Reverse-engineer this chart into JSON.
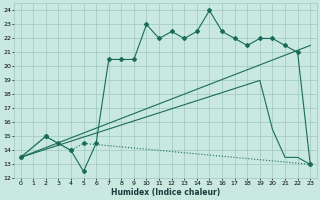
{
  "xlabel": "Humidex (Indice chaleur)",
  "bg_color": "#c8e8e0",
  "grid_color": "#a0c8c0",
  "line_color": "#1a6b5a",
  "xlim": [
    -0.5,
    23.5
  ],
  "ylim": [
    12,
    24.5
  ],
  "xticks": [
    0,
    1,
    2,
    3,
    4,
    5,
    6,
    7,
    8,
    9,
    10,
    11,
    12,
    13,
    14,
    15,
    16,
    17,
    18,
    19,
    20,
    21,
    22,
    23
  ],
  "yticks": [
    12,
    13,
    14,
    15,
    16,
    17,
    18,
    19,
    20,
    21,
    22,
    23,
    24
  ],
  "line1_x": [
    0,
    2,
    3,
    4,
    5,
    6,
    7,
    8,
    9,
    10,
    11,
    12,
    13,
    14,
    15,
    16,
    17,
    18,
    19,
    20,
    21,
    22,
    23
  ],
  "line1_y": [
    13.5,
    15,
    14.5,
    14,
    12.5,
    14.5,
    20.5,
    20.5,
    20.5,
    23,
    22,
    22.5,
    22,
    22.5,
    24,
    22.5,
    22,
    21.5,
    22,
    22,
    21.5,
    21,
    13
  ],
  "line2_x": [
    0,
    2,
    4,
    5,
    23
  ],
  "line2_y": [
    13.5,
    15,
    14,
    14.5,
    13
  ],
  "line3_x": [
    0,
    23
  ],
  "line3_y": [
    13.5,
    21.5
  ],
  "line4_x": [
    0,
    19,
    20,
    21,
    22,
    23
  ],
  "line4_y": [
    13.5,
    19,
    15.5,
    13.5,
    13.5,
    13
  ]
}
